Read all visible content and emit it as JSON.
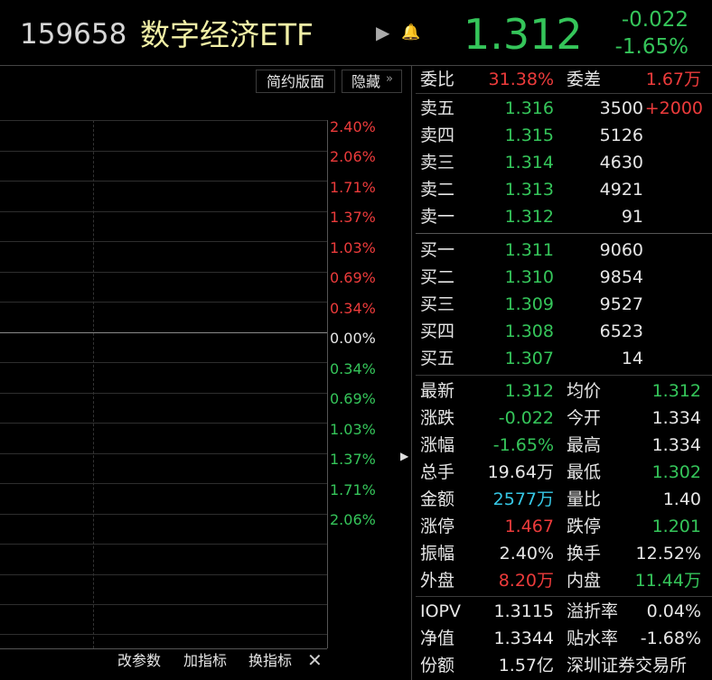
{
  "header": {
    "code": "159658",
    "name": "数字经济ETF",
    "price": "1.312",
    "change": "-0.022",
    "change_pct": "-1.65%"
  },
  "chart_panel": {
    "buttons": [
      "简约版面",
      "隐藏"
    ],
    "axis_labels": [
      "2.40%",
      "2.06%",
      "1.71%",
      "1.37%",
      "1.03%",
      "0.69%",
      "0.34%",
      "0.00%",
      "0.34%",
      "0.69%",
      "1.03%",
      "1.37%",
      "1.71%",
      "2.06%"
    ],
    "toolbar": [
      "改参数",
      "加指标",
      "换指标"
    ]
  },
  "order_book": {
    "summary": [
      "委比",
      "31.38%",
      "委差",
      "1.67万"
    ],
    "asks": [
      [
        "卖五",
        "1.316",
        "3500",
        "+2000"
      ],
      [
        "卖四",
        "1.315",
        "5126"
      ],
      [
        "卖三",
        "1.314",
        "4630"
      ],
      [
        "卖二",
        "1.313",
        "4921"
      ],
      [
        "卖一",
        "1.312",
        "91"
      ]
    ],
    "bids": [
      [
        "买一",
        "1.311",
        "9060"
      ],
      [
        "买二",
        "1.310",
        "9854"
      ],
      [
        "买三",
        "1.309",
        "9527"
      ],
      [
        "买四",
        "1.308",
        "6523"
      ],
      [
        "买五",
        "1.307",
        "14"
      ]
    ]
  },
  "stats": [
    [
      "最新",
      "1.312",
      "均价",
      "1.312"
    ],
    [
      "涨跌",
      "-0.022",
      "今开",
      "1.334"
    ],
    [
      "涨幅",
      "-1.65%",
      "最高",
      "1.334"
    ],
    [
      "总手",
      "19.64万",
      "最低",
      "1.302"
    ],
    [
      "金额",
      "2577万",
      "量比",
      "1.40"
    ],
    [
      "涨停",
      "1.467",
      "跌停",
      "1.201"
    ],
    [
      "振幅",
      "2.40%",
      "换手",
      "12.52%"
    ],
    [
      "外盘",
      "8.20万",
      "内盘",
      "11.44万"
    ]
  ],
  "fund": [
    [
      "IOPV",
      "1.3115",
      "溢折率",
      "0.04%"
    ],
    [
      "净值",
      "1.3344",
      "贴水率",
      "-1.68%"
    ],
    [
      "份额",
      "1.57亿",
      "深圳证券交易所"
    ]
  ]
}
